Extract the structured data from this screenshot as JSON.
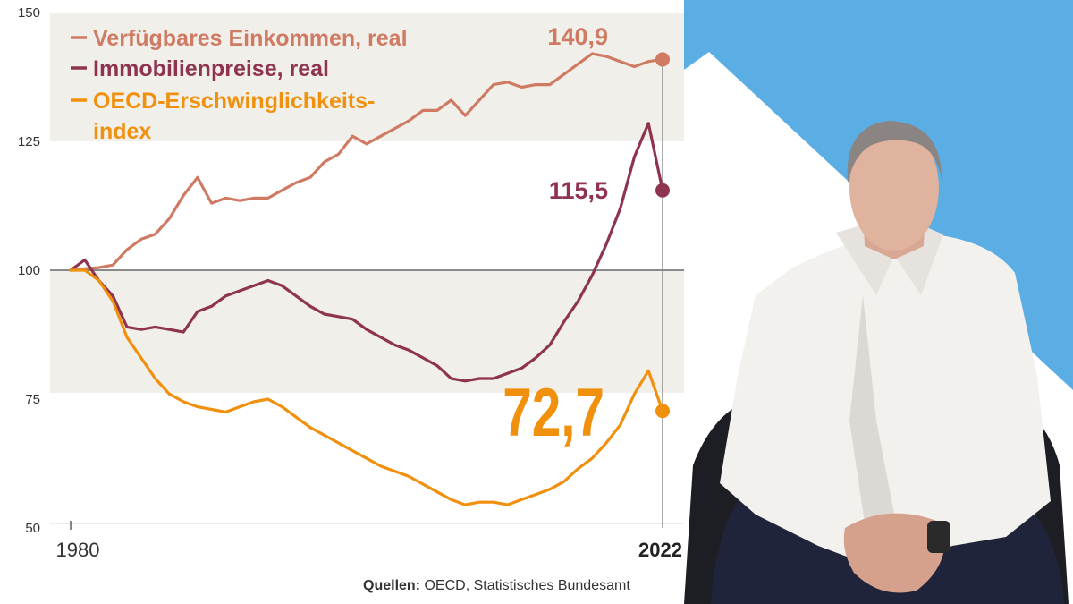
{
  "chart_data": {
    "type": "line",
    "title": "",
    "xlabel": "",
    "ylabel": "",
    "xlim": [
      1980,
      2022
    ],
    "ylim": [
      50,
      150
    ],
    "y_ticks": [
      50,
      75,
      100,
      125,
      150
    ],
    "y_tick_labels": [
      "50",
      "75",
      "100",
      "125",
      "150"
    ],
    "x_tick_labels": [
      "1980",
      "2022"
    ],
    "reference_line": 100,
    "shaded_band": [
      75,
      125
    ],
    "legend_position": "top-left",
    "series": [
      {
        "name": "Verfügbares Einkommen, real",
        "color": "#cf7a63",
        "end_label": "140,9",
        "x": [
          1980,
          1981,
          1982,
          1983,
          1984,
          1985,
          1986,
          1987,
          1988,
          1989,
          1990,
          1991,
          1992,
          1993,
          1994,
          1995,
          1996,
          1997,
          1998,
          1999,
          2000,
          2001,
          2002,
          2003,
          2004,
          2005,
          2006,
          2007,
          2008,
          2009,
          2010,
          2011,
          2012,
          2013,
          2014,
          2015,
          2016,
          2017,
          2018,
          2019,
          2020,
          2021,
          2022
        ],
        "values": [
          100,
          100.3,
          100.5,
          101,
          104,
          106,
          107,
          110,
          114.5,
          118,
          113,
          114,
          113.5,
          114,
          114,
          115.5,
          117,
          118,
          121,
          122.5,
          126,
          124.5,
          126,
          127.5,
          129,
          131,
          131,
          133,
          130,
          133,
          136,
          136.5,
          135.5,
          136,
          136,
          138,
          140,
          142,
          141.5,
          140.5,
          139.5,
          140.5,
          140.9
        ]
      },
      {
        "name": "Immobilienpreise, real",
        "color": "#8e3350",
        "end_label": "115,5",
        "x": [
          1980,
          1981,
          1982,
          1983,
          1984,
          1985,
          1986,
          1987,
          1988,
          1989,
          1990,
          1991,
          1992,
          1993,
          1994,
          1995,
          1996,
          1997,
          1998,
          1999,
          2000,
          2001,
          2002,
          2003,
          2004,
          2005,
          2006,
          2007,
          2008,
          2009,
          2010,
          2011,
          2012,
          2013,
          2014,
          2015,
          2016,
          2017,
          2018,
          2019,
          2020,
          2021,
          2022
        ],
        "values": [
          100,
          102,
          98,
          95,
          89,
          88.5,
          89,
          88.5,
          88,
          92,
          93,
          95,
          96,
          97,
          98,
          97,
          95,
          93,
          91.5,
          91,
          90.5,
          88.5,
          87,
          85.5,
          84.5,
          83,
          81.5,
          79,
          78.5,
          79,
          79,
          80,
          81,
          83,
          85.5,
          90,
          94,
          99,
          105,
          112,
          122,
          128.5,
          115.5
        ]
      },
      {
        "name": "OECD-Erschwinglichkeits-index",
        "name_lines": [
          "OECD-Erschwinglichkeits-",
          "index"
        ],
        "color": "#f0900c",
        "end_label": "72,7",
        "x": [
          1980,
          1981,
          1982,
          1983,
          1984,
          1985,
          1986,
          1987,
          1988,
          1989,
          1990,
          1991,
          1992,
          1993,
          1994,
          1995,
          1996,
          1997,
          1998,
          1999,
          2000,
          2001,
          2002,
          2003,
          2004,
          2005,
          2006,
          2007,
          2008,
          2009,
          2010,
          2011,
          2012,
          2013,
          2014,
          2015,
          2016,
          2017,
          2018,
          2019,
          2020,
          2021,
          2022
        ],
        "values": [
          100,
          100,
          98,
          94,
          87,
          83,
          79,
          76,
          74.5,
          73.5,
          73,
          72.5,
          73.5,
          74.5,
          75,
          73.5,
          71.5,
          69.5,
          68,
          66.5,
          65,
          63.5,
          62,
          61,
          60,
          58.5,
          57,
          55.5,
          54.5,
          55,
          55,
          54.5,
          55.5,
          56.5,
          57.5,
          59,
          61.5,
          63.5,
          66.5,
          70,
          76,
          80.5,
          72.7
        ]
      }
    ]
  },
  "source": {
    "label": "Quellen:",
    "text": " OECD, Statistisches Bundesamt"
  },
  "photo": {
    "background_color": "#5aaee3"
  }
}
